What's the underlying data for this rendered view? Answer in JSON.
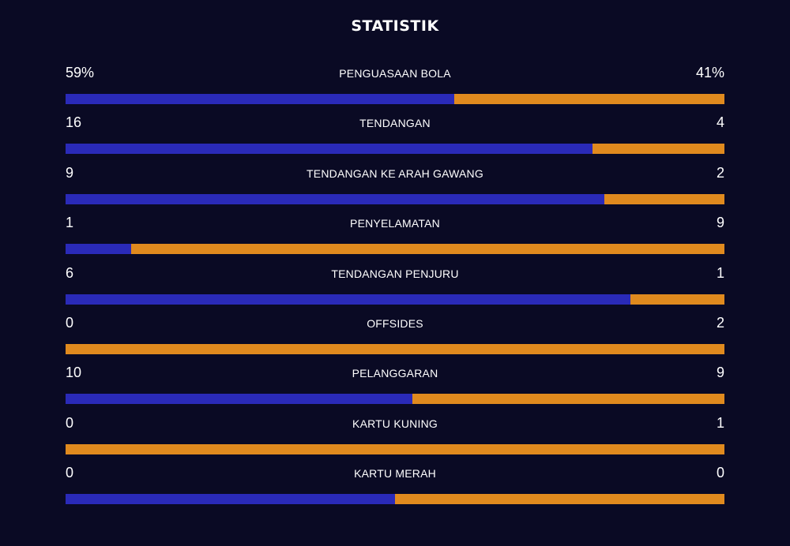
{
  "title": "STATISTIK",
  "colors": {
    "background": "#0a0a24",
    "home": "#2a2ab8",
    "away": "#e08a1e",
    "text": "#ffffff"
  },
  "stats": [
    {
      "label": "PENGUASAAN BOLA",
      "home": "59%",
      "away": "41%",
      "home_share": 0.59
    },
    {
      "label": "TENDANGAN",
      "home": "16",
      "away": "4",
      "home_share": 0.8
    },
    {
      "label": "TENDANGAN KE ARAH GAWANG",
      "home": "9",
      "away": "2",
      "home_share": 0.818
    },
    {
      "label": "PENYELAMATAN",
      "home": "1",
      "away": "9",
      "home_share": 0.1
    },
    {
      "label": "TENDANGAN PENJURU",
      "home": "6",
      "away": "1",
      "home_share": 0.857
    },
    {
      "label": "OFFSIDES",
      "home": "0",
      "away": "2",
      "home_share": 0
    },
    {
      "label": "PELANGGARAN",
      "home": "10",
      "away": "9",
      "home_share": 0.526
    },
    {
      "label": "KARTU KUNING",
      "home": "0",
      "away": "1",
      "home_share": 0
    },
    {
      "label": "KARTU MERAH",
      "home": "0",
      "away": "0",
      "home_share": 0.5
    }
  ]
}
